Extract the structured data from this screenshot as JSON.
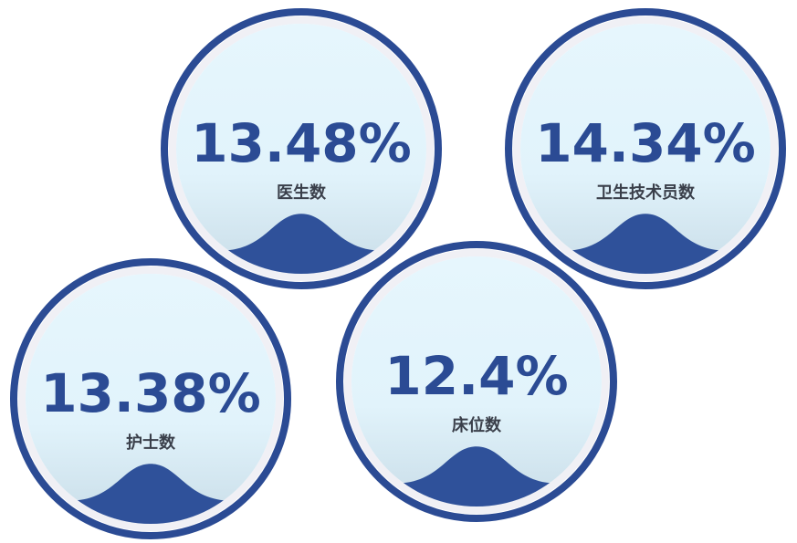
{
  "chart_data": {
    "type": "liquid-gauge",
    "colors": {
      "ring": "#2b4b94",
      "inner_ring": "#f0f0f5",
      "fill": "#e3f5fc",
      "wave": "#2f519a",
      "value_text": "#2b4b94",
      "label_text": "#3a3f4a"
    },
    "items": [
      {
        "label": "医生数",
        "value": 13.48,
        "display": "13.48%"
      },
      {
        "label": "卫生技术员数",
        "value": 14.34,
        "display": "14.34%"
      },
      {
        "label": "护士数",
        "value": 13.38,
        "display": "13.38%"
      },
      {
        "label": "床位数",
        "value": 12.4,
        "display": "12.4%"
      }
    ]
  }
}
